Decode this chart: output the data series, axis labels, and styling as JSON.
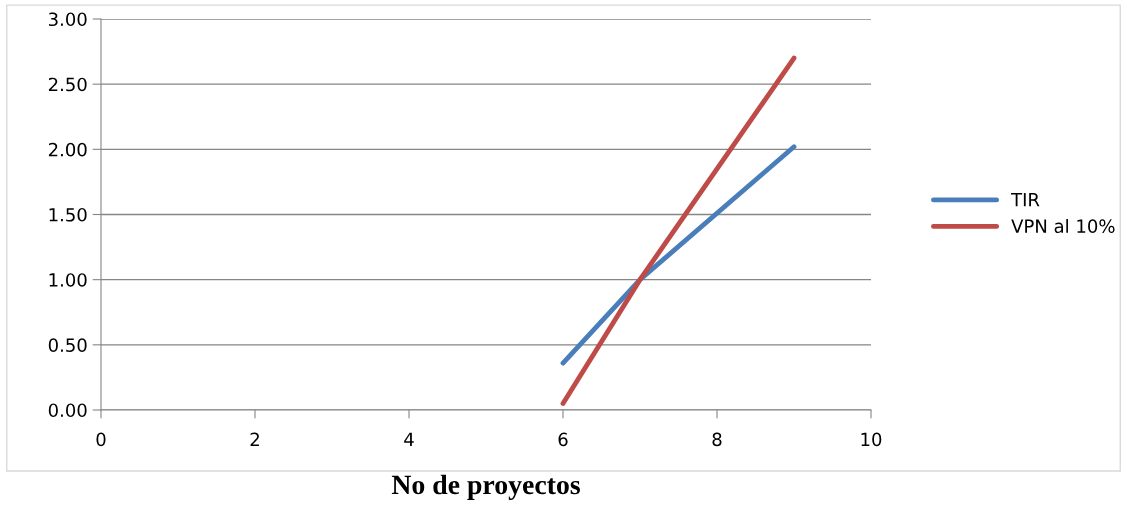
{
  "chart_data": {
    "type": "line",
    "xlabel": "No de proyectos",
    "series": [
      {
        "name": "TIR",
        "color": "#4a7ebb",
        "x": [
          6,
          7,
          9
        ],
        "values": [
          0.36,
          1.0,
          2.02
        ]
      },
      {
        "name": "VPN al 10%",
        "color": "#be4b48",
        "x": [
          6,
          7,
          9
        ],
        "values": [
          0.05,
          1.0,
          2.7
        ]
      }
    ],
    "xlim": [
      0,
      10
    ],
    "xticks": [
      0,
      2,
      4,
      6,
      8,
      10
    ],
    "ylim": [
      0,
      3
    ],
    "yticks": [
      {
        "value": 0,
        "label": "0.00"
      },
      {
        "value": 0.5,
        "label": "0.50"
      },
      {
        "value": 1,
        "label": "1.00"
      },
      {
        "value": 1.5,
        "label": "1.50"
      },
      {
        "value": 2,
        "label": "2.00"
      },
      {
        "value": 2.5,
        "label": "2.50"
      },
      {
        "value": 3,
        "label": "3.00"
      }
    ],
    "grid": "y",
    "legend": "right",
    "marker": "none",
    "line_style": "solid"
  }
}
